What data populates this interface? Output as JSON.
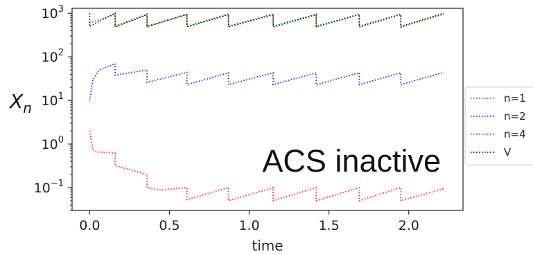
{
  "chart_data": {
    "type": "line",
    "xlabel": "time",
    "ylabel": "X",
    "ylabel_subscript": "n",
    "yscale": "log",
    "xlim": [
      -0.11,
      2.34
    ],
    "ylim": [
      0.03,
      1300
    ],
    "xticks": [
      {
        "value": 0.0,
        "label": "0.0"
      },
      {
        "value": 0.5,
        "label": "0.5"
      },
      {
        "value": 1.0,
        "label": "1.0"
      },
      {
        "value": 1.5,
        "label": "1.5"
      },
      {
        "value": 2.0,
        "label": "2.0"
      }
    ],
    "yticks": [
      {
        "value": 1000,
        "base": "10",
        "exp": "3"
      },
      {
        "value": 100,
        "base": "10",
        "exp": "2"
      },
      {
        "value": 10,
        "base": "10",
        "exp": "1"
      },
      {
        "value": 1,
        "base": "10",
        "exp": "0"
      },
      {
        "value": 0.1,
        "base": "10",
        "exp": "−1"
      }
    ],
    "annotation": "ACS inactive",
    "legend_position": "right-outside",
    "line_style": "dotted",
    "series": [
      {
        "name": "n=1",
        "color": "#228B22",
        "points": [
          [
            0,
            600
          ],
          [
            0.16,
            950
          ],
          [
            0.16,
            480
          ],
          [
            0.36,
            920
          ],
          [
            0.36,
            490
          ],
          [
            0.61,
            930
          ],
          [
            0.61,
            480
          ],
          [
            0.87,
            920
          ],
          [
            0.87,
            480
          ],
          [
            1.15,
            920
          ],
          [
            1.15,
            480
          ],
          [
            1.42,
            920
          ],
          [
            1.42,
            480
          ],
          [
            1.69,
            930
          ],
          [
            1.69,
            480
          ],
          [
            1.95,
            930
          ],
          [
            1.95,
            480
          ],
          [
            2.22,
            960
          ]
        ]
      },
      {
        "name": "n=2",
        "color": "#1a1aff",
        "points": [
          [
            0,
            10
          ],
          [
            0.02,
            30
          ],
          [
            0.06,
            50
          ],
          [
            0.16,
            70
          ],
          [
            0.16,
            38
          ],
          [
            0.36,
            50
          ],
          [
            0.36,
            26
          ],
          [
            0.61,
            44
          ],
          [
            0.61,
            23
          ],
          [
            0.87,
            43
          ],
          [
            0.87,
            23
          ],
          [
            1.15,
            43
          ],
          [
            1.15,
            23
          ],
          [
            1.42,
            43
          ],
          [
            1.42,
            23
          ],
          [
            1.69,
            43
          ],
          [
            1.69,
            23
          ],
          [
            1.95,
            43
          ],
          [
            1.95,
            23
          ],
          [
            2.22,
            44
          ]
        ]
      },
      {
        "name": "n=4",
        "color": "#ff1a1a",
        "points": [
          [
            0,
            2
          ],
          [
            0.02,
            0.75
          ],
          [
            0.04,
            0.66
          ],
          [
            0.16,
            0.62
          ],
          [
            0.16,
            0.32
          ],
          [
            0.36,
            0.2
          ],
          [
            0.36,
            0.1
          ],
          [
            0.44,
            0.088
          ],
          [
            0.61,
            0.1
          ],
          [
            0.61,
            0.053
          ],
          [
            0.87,
            0.1
          ],
          [
            0.87,
            0.05
          ],
          [
            1.15,
            0.1
          ],
          [
            1.15,
            0.05
          ],
          [
            1.42,
            0.1
          ],
          [
            1.42,
            0.05
          ],
          [
            1.69,
            0.1
          ],
          [
            1.69,
            0.05
          ],
          [
            1.95,
            0.1
          ],
          [
            1.95,
            0.05
          ],
          [
            2.22,
            0.095
          ]
        ]
      },
      {
        "name": "V",
        "color": "#111111",
        "points": [
          [
            0,
            1000
          ],
          [
            0,
            500
          ],
          [
            0.16,
            1000
          ],
          [
            0.16,
            500
          ],
          [
            0.36,
            950
          ],
          [
            0.36,
            500
          ],
          [
            0.61,
            950
          ],
          [
            0.61,
            500
          ],
          [
            0.87,
            950
          ],
          [
            0.87,
            500
          ],
          [
            1.15,
            950
          ],
          [
            1.15,
            500
          ],
          [
            1.42,
            950
          ],
          [
            1.42,
            500
          ],
          [
            1.69,
            950
          ],
          [
            1.69,
            500
          ],
          [
            1.95,
            950
          ],
          [
            1.95,
            500
          ],
          [
            2.22,
            1000
          ]
        ]
      }
    ]
  }
}
